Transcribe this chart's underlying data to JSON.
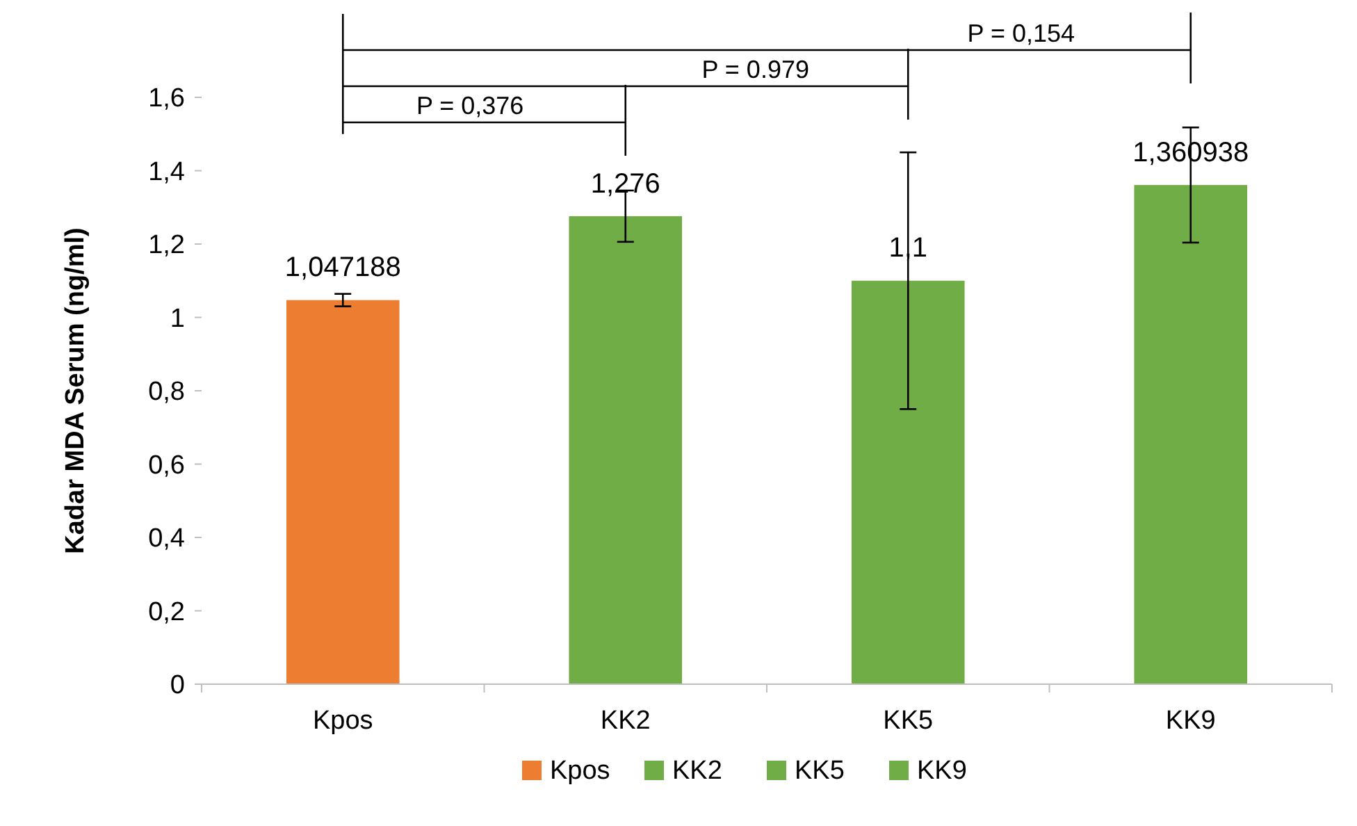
{
  "chart_data": {
    "type": "bar",
    "ylabel": "Kadar MDA Serum (ng/ml)",
    "categories": [
      "Kpos",
      "KK2",
      "KK5",
      "KK9"
    ],
    "stacked": true,
    "series": [
      {
        "name": "Kpos",
        "color": "#ed7d31",
        "values": [
          1.047188,
          null,
          null,
          null
        ],
        "errors": [
          0.017,
          null,
          null,
          null
        ],
        "value_labels": [
          "1,047188",
          null,
          null,
          null
        ]
      },
      {
        "name": "KK2",
        "color": "#70ad47",
        "values": [
          null,
          1.276,
          null,
          null
        ],
        "errors": [
          null,
          0.07,
          null,
          null
        ],
        "value_labels": [
          null,
          "1,276",
          null,
          null
        ]
      },
      {
        "name": "KK5",
        "color": "#70ad47",
        "values": [
          null,
          null,
          1.1,
          null
        ],
        "errors": [
          null,
          null,
          0.35,
          null
        ],
        "value_labels": [
          null,
          null,
          "1,1",
          null
        ]
      },
      {
        "name": "KK9",
        "color": "#70ad47",
        "values": [
          null,
          null,
          null,
          1.360938
        ],
        "errors": [
          null,
          null,
          null,
          0.157
        ],
        "value_labels": [
          null,
          null,
          null,
          "1,360938"
        ]
      }
    ],
    "ylim": [
      0,
      1.6
    ],
    "yticks": [
      0,
      {
        "value": 0.2,
        "label": "0,2"
      },
      {
        "value": 0.4,
        "label": "0,4"
      },
      {
        "value": 0.6,
        "label": "0,6"
      },
      {
        "value": 0.8,
        "label": "0,8"
      },
      1,
      {
        "value": 1.2,
        "label": "1,2"
      },
      {
        "value": 1.4,
        "label": "1,4"
      },
      {
        "value": 1.6,
        "label": "1,6"
      }
    ],
    "grid": false,
    "legend": "bottom",
    "annotations": [
      "P = 0,376",
      "P = 0.979",
      "P = 0,154"
    ]
  }
}
